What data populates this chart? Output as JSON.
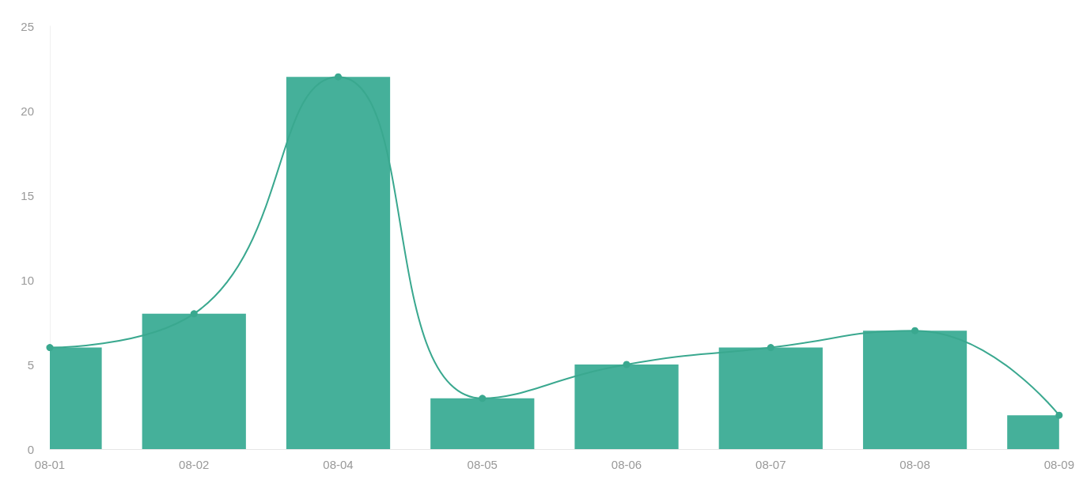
{
  "chart_data": {
    "type": "bar",
    "categories": [
      "08-01",
      "08-02",
      "08-04",
      "08-05",
      "08-06",
      "08-07",
      "08-08",
      "08-09"
    ],
    "series": [
      {
        "color": "#45b09a",
        "values": [
          6,
          8,
          22,
          3,
          5,
          6,
          7,
          2
        ]
      },
      {
        "type": "line",
        "color": "#3aa88f",
        "values": [
          6,
          8,
          22,
          3,
          5,
          6,
          7,
          2
        ]
      }
    ],
    "ylim": [
      0,
      25
    ],
    "yticks": [
      0,
      5,
      10,
      15,
      20,
      25
    ],
    "grid": false,
    "marker": "circle",
    "line_style": "solid"
  }
}
